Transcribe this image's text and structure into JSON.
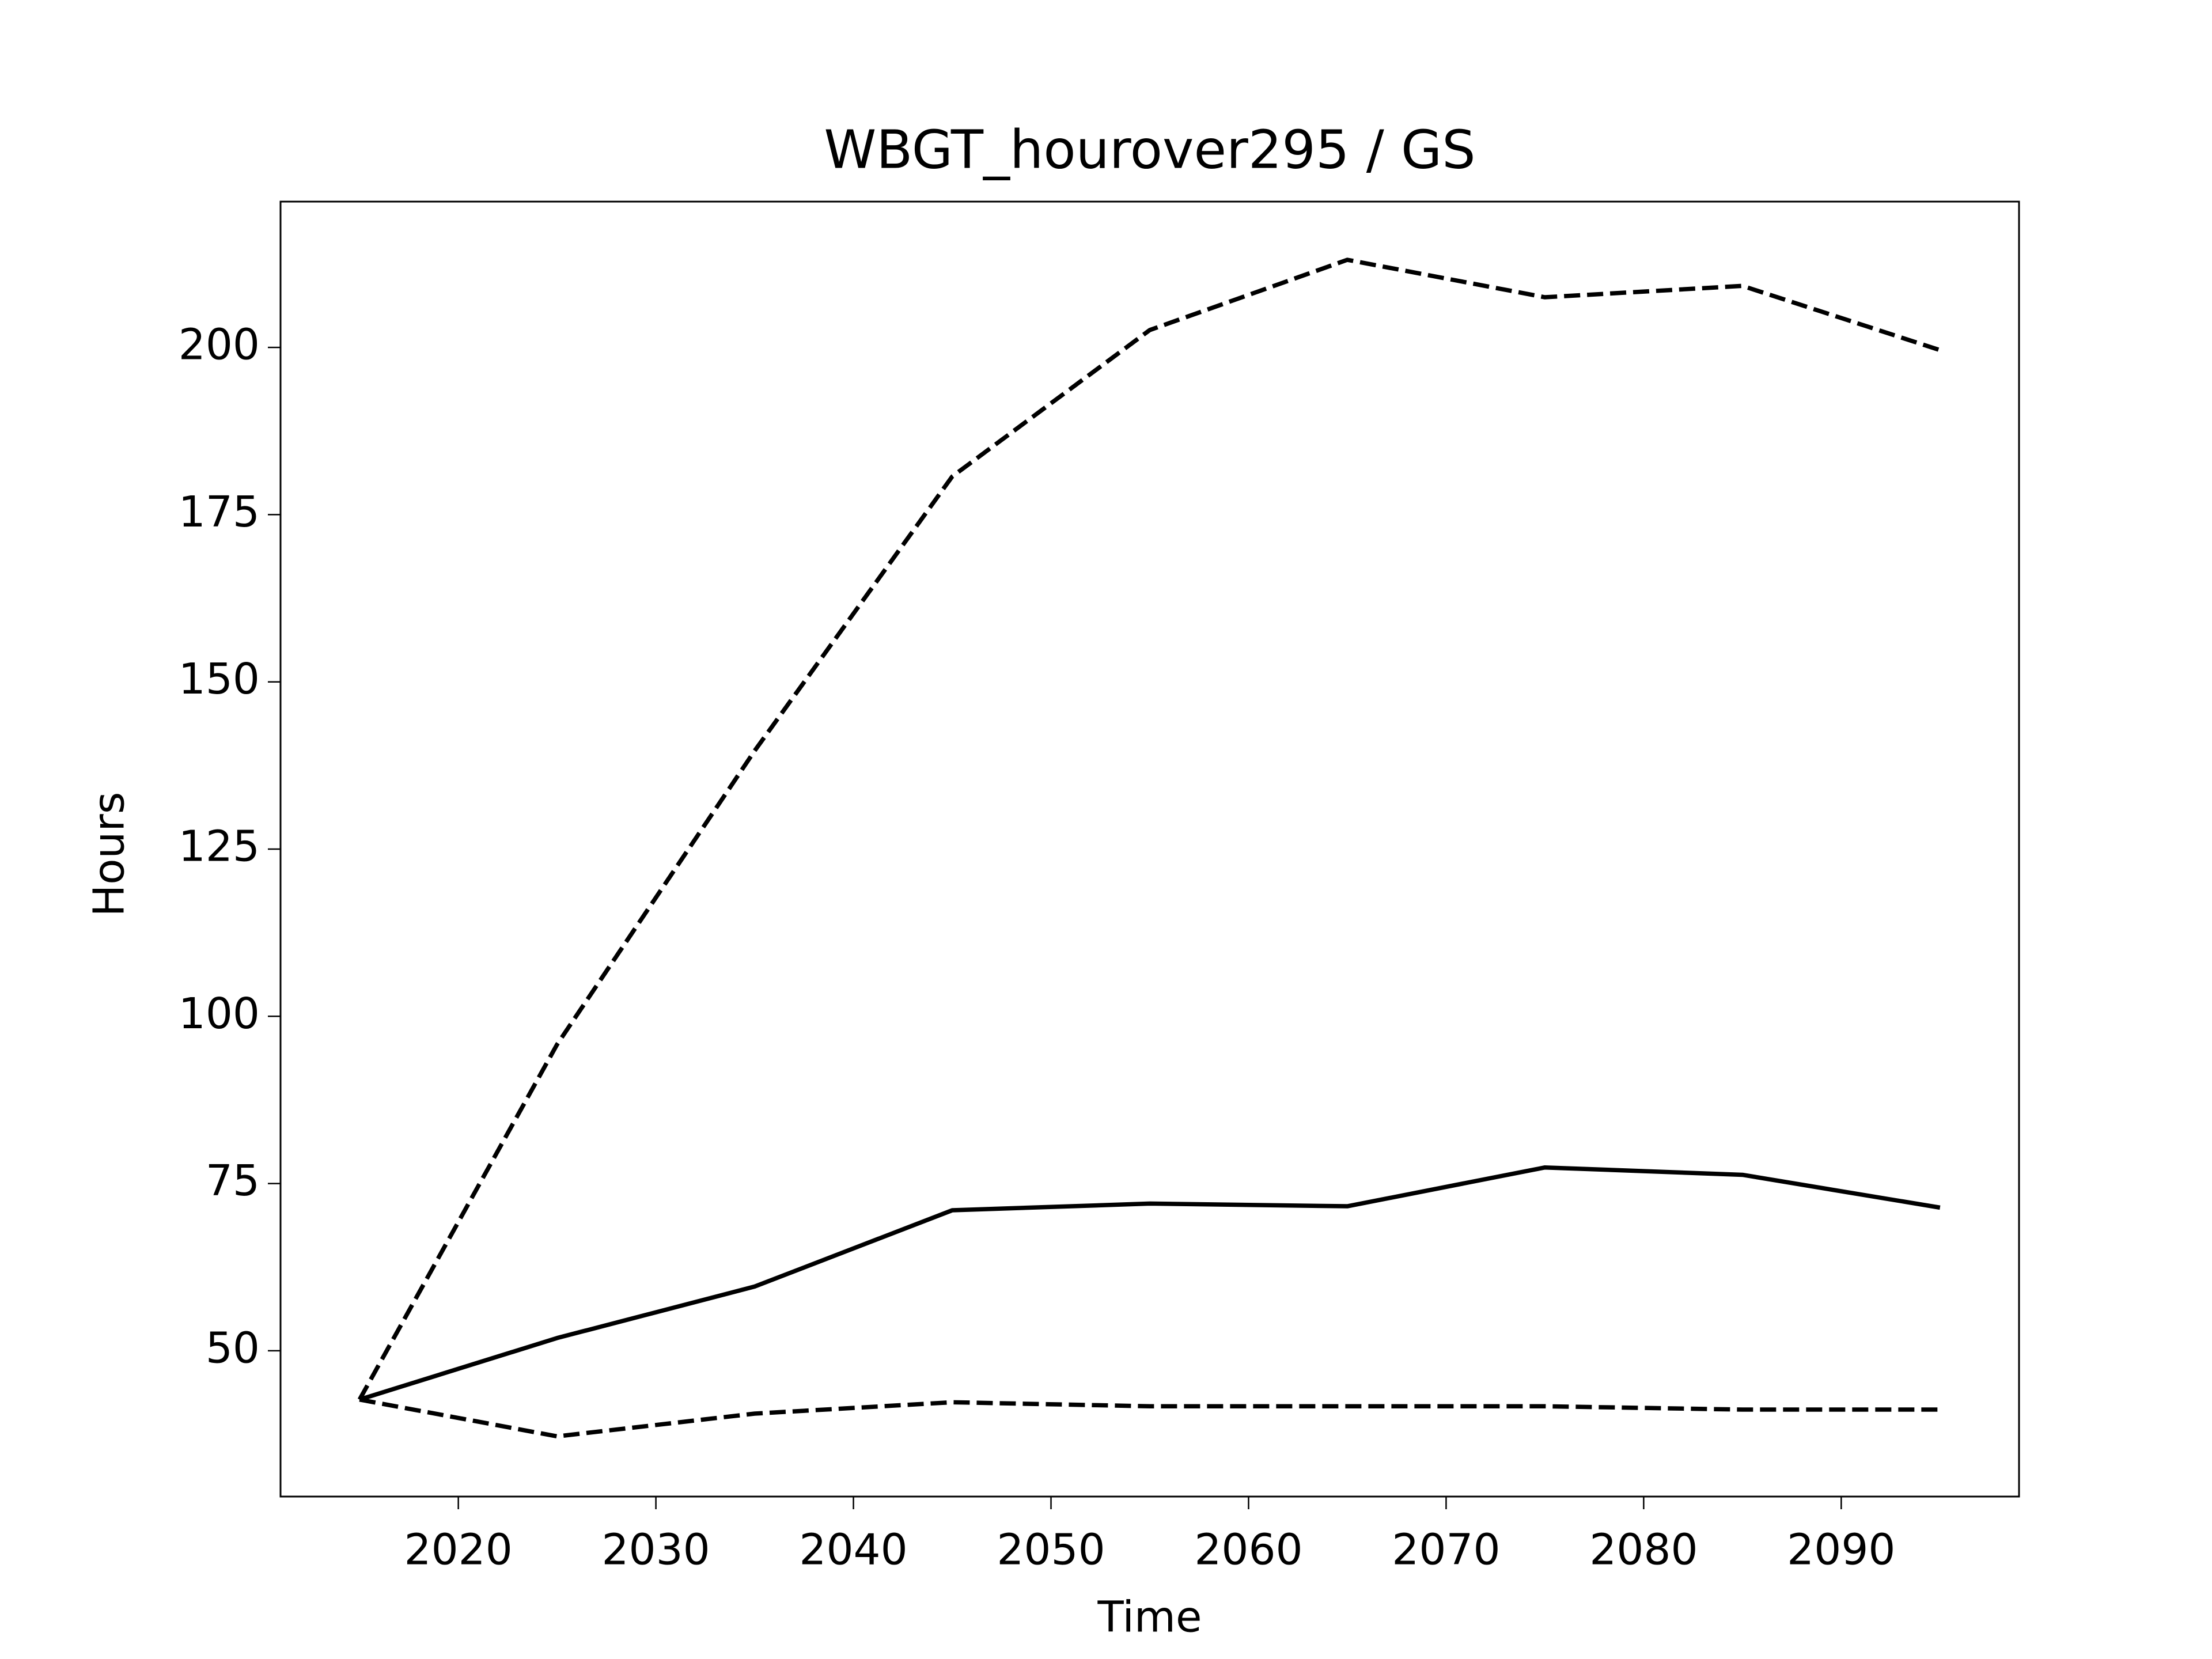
{
  "chart_data": {
    "type": "line",
    "title": "WBGT_hourover295 / GS",
    "x_label": "Time",
    "y_label": "Hours",
    "x": [
      2015,
      2025,
      2035,
      2045,
      2055,
      2065,
      2075,
      2085,
      2095
    ],
    "series": [
      {
        "color": "#000000",
        "dashed": true,
        "values": [
          42.7,
          95.8,
          139.7,
          180.7,
          202.6,
          213.1,
          207.5,
          209.2,
          199.6
        ]
      },
      {
        "color": "#000000",
        "dashed": false,
        "values": [
          42.7,
          51.9,
          59.6,
          71.0,
          72.0,
          71.6,
          77.4,
          76.3,
          71.4
        ]
      },
      {
        "color": "#000000",
        "dashed": true,
        "values": [
          42.7,
          37.2,
          40.6,
          42.3,
          41.7,
          41.7,
          41.7,
          41.2,
          41.2
        ]
      }
    ],
    "xlim": [
      2011,
      2099
    ],
    "xticks": [
      2020,
      2030,
      2040,
      2050,
      2060,
      2070,
      2080,
      2090
    ],
    "ylim": [
      28.2,
      221.8
    ],
    "yticks": [
      50,
      75,
      100,
      125,
      150,
      175,
      200
    ],
    "grid": false
  }
}
